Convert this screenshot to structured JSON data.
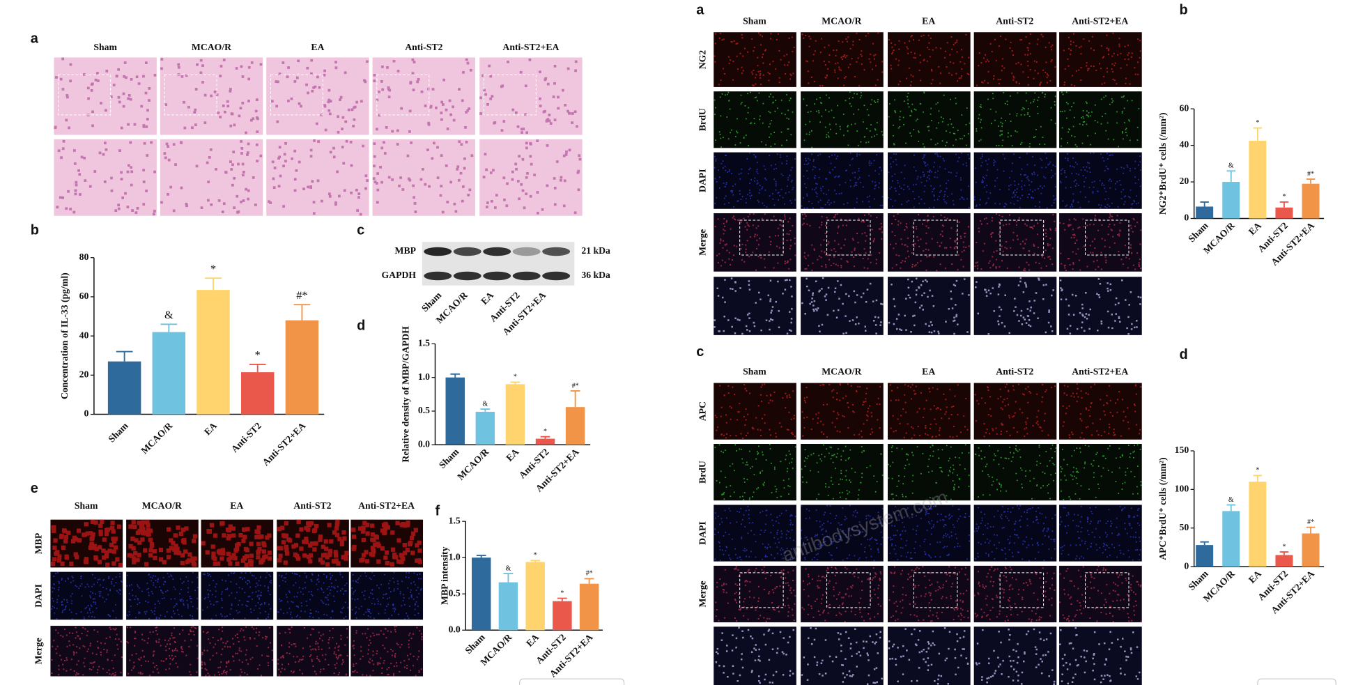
{
  "panels": {
    "left_a": {
      "label": "a",
      "columns": [
        "Sham",
        "MCAO/R",
        "EA",
        "Anti-ST2",
        "Anti-ST2+EA"
      ]
    },
    "left_c": {
      "label": "c",
      "proteins": [
        "MBP",
        "GAPDH"
      ],
      "sizes": [
        "21 kDa",
        "36 kDa"
      ],
      "lanes": [
        "Sham",
        "MCAO/R",
        "EA",
        "Anti-ST2",
        "Anti-ST2+EA"
      ]
    },
    "left_e": {
      "label": "e",
      "columns": [
        "Sham",
        "MCAO/R",
        "EA",
        "Anti-ST2",
        "Anti-ST2+EA"
      ],
      "rows": [
        "MBP",
        "DAPI",
        "Merge"
      ]
    },
    "right_a": {
      "label": "a",
      "columns": [
        "Sham",
        "MCAO/R",
        "EA",
        "Anti-ST2",
        "Anti-ST2+EA"
      ],
      "rows": [
        "NG2",
        "BrdU",
        "DAPI",
        "Merge"
      ]
    },
    "right_c": {
      "label": "c",
      "columns": [
        "Sham",
        "MCAO/R",
        "EA",
        "Anti-ST2",
        "Anti-ST2+EA"
      ],
      "rows": [
        "APC",
        "BrdU",
        "DAPI",
        "Merge"
      ],
      "watermark": "antibodysystem.com"
    }
  },
  "chart_data": [
    {
      "type": "bar",
      "panel_label": "b",
      "y_label": "Concentration of IL-33 (pg/ml)",
      "categories": [
        "Sham",
        "MCAO/R",
        "EA",
        "Anti-ST2",
        "Anti-ST2+EA"
      ],
      "values": [
        27,
        42,
        63.5,
        21.5,
        48
      ],
      "errors": [
        5,
        4,
        6,
        4,
        8
      ],
      "annotations": [
        null,
        "&",
        "*",
        "*",
        "#*"
      ],
      "colors": [
        "#2f6a9c",
        "#6fc2e0",
        "#ffd46e",
        "#e9584b",
        "#f29447"
      ],
      "ylim": [
        0,
        80
      ],
      "yticks": [
        0,
        20,
        40,
        60,
        80
      ]
    },
    {
      "type": "bar",
      "panel_label": "d",
      "y_label": "Relative density of MBP/GAPDH",
      "categories": [
        "Sham",
        "MCAO/R",
        "EA",
        "Anti-ST2",
        "Anti-ST2+EA"
      ],
      "values": [
        1.0,
        0.49,
        0.9,
        0.09,
        0.56
      ],
      "errors": [
        0.05,
        0.04,
        0.03,
        0.03,
        0.24
      ],
      "annotations": [
        null,
        "&",
        "*",
        "*",
        "#*"
      ],
      "colors": [
        "#2f6a9c",
        "#6fc2e0",
        "#ffd46e",
        "#e9584b",
        "#f29447"
      ],
      "ylim": [
        0,
        1.5
      ],
      "yticks": [
        {
          "value": 0,
          "label": "0.0"
        },
        0.5,
        {
          "value": 1,
          "label": "1.0"
        },
        1.5
      ]
    },
    {
      "type": "bar",
      "panel_label": "f",
      "y_label": "MBP intensity",
      "categories": [
        "Sham",
        "MCAO/R",
        "EA",
        "Anti-ST2",
        "Anti-ST2+EA"
      ],
      "values": [
        1.0,
        0.66,
        0.94,
        0.4,
        0.64
      ],
      "errors": [
        0.03,
        0.12,
        0.02,
        0.04,
        0.07
      ],
      "annotations": [
        null,
        "&",
        "*",
        "*",
        "#*"
      ],
      "colors": [
        "#2f6a9c",
        "#6fc2e0",
        "#ffd46e",
        "#e9584b",
        "#f29447"
      ],
      "ylim": [
        0,
        1.5
      ],
      "yticks": [
        {
          "value": 0,
          "label": "0.0"
        },
        0.5,
        {
          "value": 1,
          "label": "1.0"
        },
        1.5
      ]
    },
    {
      "type": "bar",
      "panel_label": "b",
      "y_label": "NG2⁺BrdU⁺ cells (/mm²)",
      "categories": [
        "Sham",
        "MCAO/R",
        "EA",
        "Anti-ST2",
        "Anti-ST2+EA"
      ],
      "values": [
        6.5,
        20,
        42.5,
        6,
        19
      ],
      "errors": [
        2.5,
        6,
        7,
        3,
        2.5
      ],
      "annotations": [
        null,
        "&",
        "*",
        "*",
        "#*"
      ],
      "colors": [
        "#2f6a9c",
        "#6fc2e0",
        "#ffd46e",
        "#e9584b",
        "#f29447"
      ],
      "ylim": [
        0,
        60
      ],
      "yticks": [
        0,
        20,
        40,
        60
      ]
    },
    {
      "type": "bar",
      "panel_label": "d",
      "y_label": "APC⁺BrdU⁺ cells (/mm²)",
      "categories": [
        "Sham",
        "MCAO/R",
        "EA",
        "Anti-ST2",
        "Anti-ST2+EA"
      ],
      "values": [
        28,
        72,
        110,
        15,
        43
      ],
      "errors": [
        4,
        8,
        8,
        4,
        8
      ],
      "annotations": [
        null,
        "&",
        "*",
        "*",
        "#*"
      ],
      "colors": [
        "#2f6a9c",
        "#6fc2e0",
        "#ffd46e",
        "#e9584b",
        "#f29447"
      ],
      "ylim": [
        0,
        150
      ],
      "yticks": [
        0,
        50,
        100,
        150
      ]
    }
  ]
}
